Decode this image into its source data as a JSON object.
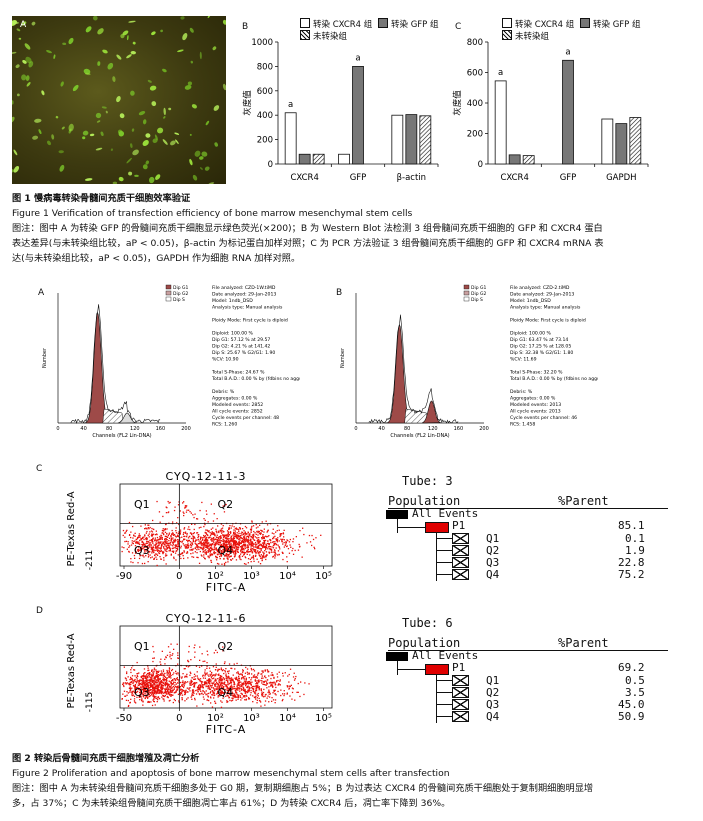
{
  "fig1": {
    "panel_a": "A",
    "panel_b": "B",
    "panel_c": "C",
    "legend": {
      "cxcr4": "转染 CXCR4 组",
      "gfp": "转染 GFP 组",
      "none": "未转染组"
    },
    "ylabel": "灰度值",
    "sig": "a",
    "caption_title_cn": "图 1   慢病毒转染骨髓间充质干细胞效率验证",
    "caption_title_en": "Figure 1    Verification of transfection efficiency of bone marrow mesenchymal stem cells",
    "caption_line1": "图注：图中 A 为转染 GFP 的骨髓间充质干细胞显示绿色荧光(×200)；B 为 Western Blot 法检测 3 组骨髓间充质干细胞的 GFP 和 CXCR4 蛋白",
    "caption_line2": "表达差异(与未转染组比较，aP < 0.05)，β-actin 为标记蛋白加样对照；C 为 PCR 方法验证 3 组骨髓间充质干细胞的 GFP 和 CXCR4 mRNA 表",
    "caption_line3": "达(与未转染组比较，aP < 0.05)，GAPDH 作为细胞 RNA 加样对照。"
  },
  "fig2": {
    "panel_a": "A",
    "panel_b": "B",
    "panel_c": "C",
    "panel_d": "D",
    "hist_legend": [
      "Dip G1",
      "Dip G2",
      "Dip S"
    ],
    "hist_xlabel": "Channels (FL2 Lin-DNA)",
    "hist_ylabel": "Number",
    "hist_ticks": [
      "0",
      "40",
      "80",
      "120",
      "160",
      "200"
    ],
    "hist_a_stats": [
      "File analyzed: CZD-1W.tiMD",
      "Date analyzed: 29-Jan-2013",
      "Model: 1ndb_DSD",
      "Analysis type: Manual analysis",
      "",
      "Ploidy Mode: First cycle is diploid",
      "",
      "Diploid: 100.00 %",
      "Dip G1: 57.12 %  at 29.57",
      "Dip G2: 4.21 %  at 141.42",
      "Dip S: 25.67 %  G2/G1: 1.90",
      "%CV: 10.90",
      "",
      "Total S-Phase: 24.67 %",
      "Total B.A.D.: 0.00 %  by (fdbins no aggs)",
      "",
      "Debris: %",
      "Aggregates: 0.00 %",
      "Modeled events: 2852",
      "All cycle events: 2852",
      "Cycle events per channel: 48",
      "RCS: 1.260"
    ],
    "hist_b_stats": [
      "File analyzed: CZD-2.tiMD",
      "Date analyzed: 29-Jan-2013",
      "Model: 1ndb_DSD",
      "Analysis type: Manual analysis",
      "",
      "Ploidy Mode: First cycle is diploid",
      "",
      "Diploid: 100.00 %",
      "Dip G1: 63.47 %  at 73.14",
      "Dip G2: 17.25 %  at 128.05",
      "Dip S: 32.38 %  G2/G1: 1.80",
      "%CV: 11.69",
      "",
      "Total S-Phase: 32.20 %",
      "Total B.A.D.: 0.00 %  by (fdbins no aggs)",
      "",
      "Debris: %",
      "Aggregates: 0.00 %",
      "Modeled events: 2013",
      "All cycle events: 2013",
      "Cycle events per channel: 46",
      "RCS: 1.458"
    ],
    "scatter_c": {
      "title": "CYQ-12-11-3",
      "xlabel": "FITC-A",
      "ylabel": "PE-Texas Red-A",
      "yneg": "-211",
      "xticks": [
        "-90",
        "0",
        "10²",
        "10³",
        "10⁴",
        "10⁵"
      ]
    },
    "scatter_d": {
      "title": "CYQ-12-11-6",
      "xlabel": "FITC-A",
      "ylabel": "PE-Texas Red-A",
      "yneg": "-115",
      "xticks": [
        "-50",
        "0",
        "10²",
        "10³",
        "10⁴",
        "10⁵"
      ]
    },
    "quadrants": [
      "Q1",
      "Q2",
      "Q3",
      "Q4"
    ],
    "table_c": {
      "tube": "Tube:  3",
      "header_pop": "Population",
      "header_parent": "%Parent",
      "all": "All Events",
      "p1": "P1",
      "p1_val": "85.1",
      "q": [
        [
          "Q1",
          "0.1"
        ],
        [
          "Q2",
          "1.9"
        ],
        [
          "Q3",
          "22.8"
        ],
        [
          "Q4",
          "75.2"
        ]
      ]
    },
    "table_d": {
      "tube": "Tube:  6",
      "header_pop": "Population",
      "header_parent": "%Parent",
      "all": "All Events",
      "p1": "P1",
      "p1_val": "69.2",
      "q": [
        [
          "Q1",
          "0.5"
        ],
        [
          "Q2",
          "3.5"
        ],
        [
          "Q3",
          "45.0"
        ],
        [
          "Q4",
          "50.9"
        ]
      ]
    },
    "caption_title_cn": "图 2   转染后骨髓间充质干细胞增殖及凋亡分析",
    "caption_title_en": "Figure 2    Proliferation and apoptosis of bone marrow mesenchymal stem cells after transfection",
    "caption_line1": "图注：图中 A 为未转染组骨髓间充质干细胞多处于 G0 期，复制期细胞占 5%；B 为过表达 CXCR4 的骨髓间充质干细胞处于复制期细胞明显增",
    "caption_line2": "多，占 37%；C 为未转染组骨髓间充质干细胞凋亡率占 61%；D 为转染 CXCR4 后，凋亡率下降到 36%。"
  },
  "colors": {
    "bar_white": "#ffffff",
    "bar_gray": "#777777",
    "hist_fill": "#9e4a48",
    "dots": "#e8120c",
    "p1_red": "#e00000"
  },
  "chart_data": [
    {
      "type": "bar",
      "title": "",
      "categories": [
        "CXCR4",
        "GFP",
        "β-actin"
      ],
      "series": [
        {
          "name": "转染 CXCR4 组",
          "values": [
            420,
            80,
            400
          ]
        },
        {
          "name": "转染 GFP 组",
          "values": [
            80,
            800,
            405
          ]
        },
        {
          "name": "未转染组",
          "values": [
            80,
            0,
            395
          ]
        }
      ],
      "ylabel": "灰度值",
      "ylim": [
        0,
        1000
      ],
      "yticks": [
        0,
        200,
        400,
        600,
        800,
        1000
      ],
      "annotations": [
        {
          "category": "CXCR4",
          "series": "转染 CXCR4 组",
          "text": "a"
        },
        {
          "category": "GFP",
          "series": "转染 GFP 组",
          "text": "a"
        }
      ]
    },
    {
      "type": "bar",
      "title": "",
      "categories": [
        "CXCR4",
        "GFP",
        "GAPDH"
      ],
      "series": [
        {
          "name": "转染 CXCR4 组",
          "values": [
            545,
            0,
            295
          ]
        },
        {
          "name": "转染 GFP 组",
          "values": [
            60,
            680,
            265
          ]
        },
        {
          "name": "未转染组",
          "values": [
            55,
            0,
            305
          ]
        }
      ],
      "ylabel": "灰度值",
      "ylim": [
        0,
        800
      ],
      "yticks": [
        0,
        200,
        400,
        600,
        800
      ],
      "annotations": [
        {
          "category": "CXCR4",
          "series": "转染 CXCR4 组",
          "text": "a"
        },
        {
          "category": "GFP",
          "series": "转染 GFP 组",
          "text": "a"
        }
      ]
    }
  ]
}
